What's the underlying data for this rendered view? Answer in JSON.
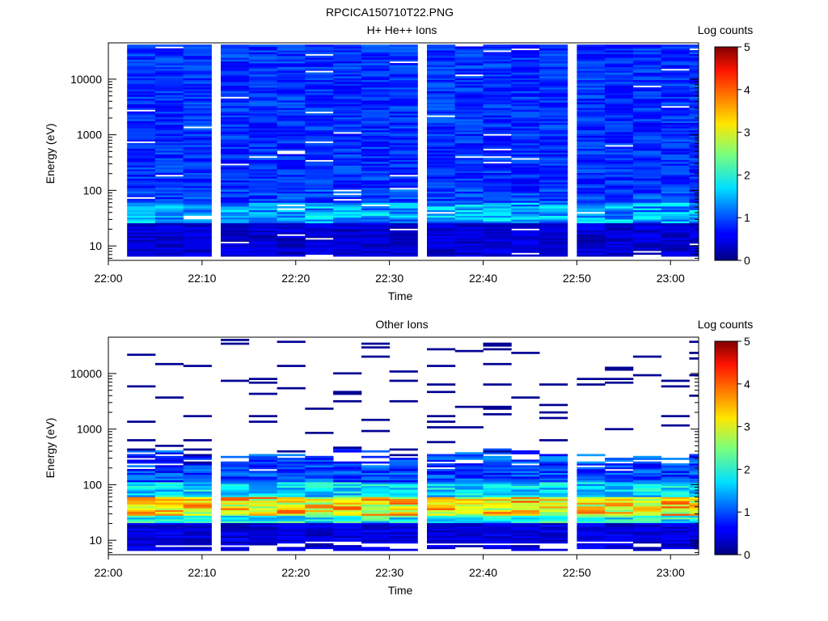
{
  "figure_title": "RPCICA150710T22.PNG",
  "chart_data": [
    {
      "type": "heatmap",
      "title": "H+ He++ Ions",
      "xlabel": "Time",
      "ylabel": "Energy (eV)",
      "y_scale": "log",
      "x_range": [
        "22:00",
        "23:03"
      ],
      "y_range": [
        5.5,
        45000
      ],
      "x_ticks": [
        "22:00",
        "22:10",
        "22:20",
        "22:30",
        "22:40",
        "22:50",
        "23:00"
      ],
      "y_ticks": [
        "10",
        "100",
        "1000",
        "10000"
      ],
      "colorbar": {
        "label": "Log counts",
        "min": 0,
        "max": 5,
        "ticks": [
          "0",
          "1",
          "2",
          "3",
          "4",
          "5"
        ]
      },
      "time_bins_start": [
        "22:02",
        "22:05",
        "22:08",
        "22:12",
        "22:15",
        "22:18",
        "22:21",
        "22:24",
        "22:27",
        "22:30",
        "22:34",
        "22:37",
        "22:40",
        "22:43",
        "22:46",
        "22:50",
        "22:53",
        "22:56",
        "22:59",
        "23:02"
      ],
      "dominant_level": {
        "high_energy_above_100eV": "0.5-1.2 log counts",
        "peak_near_40eV": "1-2 log counts"
      }
    },
    {
      "type": "heatmap",
      "title": "Other Ions",
      "xlabel": "Time",
      "ylabel": "Energy (eV)",
      "y_scale": "log",
      "x_range": [
        "22:00",
        "23:03"
      ],
      "y_range": [
        5.5,
        45000
      ],
      "x_ticks": [
        "22:00",
        "22:10",
        "22:20",
        "22:30",
        "22:40",
        "22:50",
        "23:00"
      ],
      "y_ticks": [
        "10",
        "100",
        "1000",
        "10000"
      ],
      "colorbar": {
        "label": "Log counts",
        "min": 0,
        "max": 5,
        "ticks": [
          "0",
          "1",
          "2",
          "3",
          "4",
          "5"
        ]
      },
      "time_bins_start": [
        "22:02",
        "22:05",
        "22:08",
        "22:12",
        "22:15",
        "22:18",
        "22:21",
        "22:24",
        "22:27",
        "22:30",
        "22:34",
        "22:37",
        "22:40",
        "22:43",
        "22:46",
        "22:50",
        "22:53",
        "22:56",
        "22:59",
        "23:02"
      ],
      "dominant_level": {
        "band_30_to_60eV": "2.5-4 log counts",
        "above_300eV": "sparse, ~0.1 log counts"
      }
    }
  ]
}
